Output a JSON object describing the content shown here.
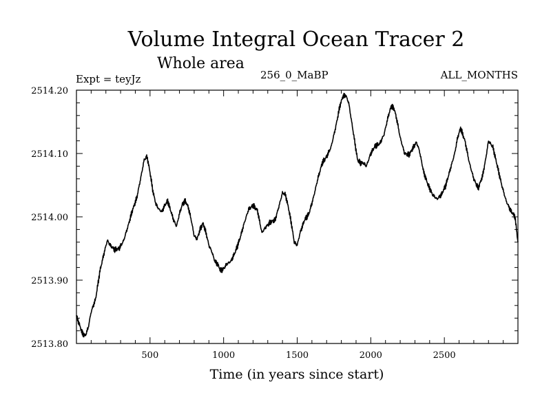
{
  "chart_data": {
    "type": "line",
    "title": "Volume Integral Ocean Tracer 2",
    "subtitle": "Whole area",
    "annotations": {
      "experiment": "Expt = teyJz",
      "period": "256_0_MaBP",
      "months": "ALL_MONTHS"
    },
    "xlabel": "Time (in years since start)",
    "ylabel": "",
    "xlim": [
      0,
      3000
    ],
    "ylim": [
      2513.8,
      2514.2
    ],
    "x_ticks": [
      500,
      1000,
      1500,
      2000,
      2500
    ],
    "x_tick_labels": [
      "500",
      "1000",
      "1500",
      "2000",
      "2500"
    ],
    "y_ticks": [
      2513.8,
      2513.9,
      2514.0,
      2514.1,
      2514.2
    ],
    "y_tick_labels": [
      "2513.80",
      "2513.90",
      "2514.00",
      "2514.10",
      "2514.20"
    ],
    "x_minor_step": 100,
    "y_minor_step": 0.02,
    "grid": false,
    "series": [
      {
        "name": "Volume Integral Ocean Tracer 2",
        "color": "#000000",
        "x": [
          0,
          20,
          40,
          60,
          80,
          100,
          130,
          160,
          190,
          210,
          230,
          260,
          290,
          320,
          350,
          380,
          410,
          440,
          460,
          480,
          500,
          520,
          540,
          560,
          580,
          600,
          620,
          640,
          660,
          680,
          700,
          720,
          740,
          760,
          780,
          800,
          820,
          840,
          860,
          880,
          900,
          920,
          940,
          960,
          980,
          1000,
          1020,
          1050,
          1080,
          1110,
          1140,
          1170,
          1200,
          1230,
          1260,
          1290,
          1320,
          1350,
          1380,
          1400,
          1420,
          1440,
          1460,
          1480,
          1500,
          1520,
          1550,
          1580,
          1610,
          1640,
          1670,
          1700,
          1730,
          1760,
          1790,
          1810,
          1830,
          1850,
          1870,
          1890,
          1910,
          1930,
          1950,
          1970,
          2000,
          2030,
          2060,
          2090,
          2120,
          2140,
          2160,
          2180,
          2200,
          2230,
          2260,
          2290,
          2310,
          2330,
          2360,
          2390,
          2420,
          2450,
          2480,
          2510,
          2540,
          2570,
          2590,
          2610,
          2640,
          2670,
          2700,
          2730,
          2760,
          2780,
          2800,
          2830,
          2860,
          2890,
          2920,
          2950,
          2980,
          3000
        ],
        "y": [
          2513.843,
          2513.83,
          2513.816,
          2513.812,
          2513.825,
          2513.85,
          2513.87,
          2513.915,
          2513.945,
          2513.963,
          2513.955,
          2513.948,
          2513.95,
          2513.962,
          2513.985,
          2514.01,
          2514.03,
          2514.065,
          2514.09,
          2514.095,
          2514.07,
          2514.04,
          2514.02,
          2514.012,
          2514.008,
          2514.018,
          2514.025,
          2514.01,
          2513.995,
          2513.985,
          2514.005,
          2514.02,
          2514.025,
          2514.015,
          2513.995,
          2513.97,
          2513.965,
          2513.98,
          2513.99,
          2513.975,
          2513.955,
          2513.945,
          2513.93,
          2513.925,
          2513.915,
          2513.918,
          2513.925,
          2513.93,
          2513.945,
          2513.965,
          2513.99,
          2514.012,
          2514.018,
          2514.01,
          2513.975,
          2513.985,
          2513.992,
          2513.995,
          2514.02,
          2514.038,
          2514.035,
          2514.015,
          2513.99,
          2513.96,
          2513.955,
          2513.975,
          2513.995,
          2514.005,
          2514.03,
          2514.06,
          2514.085,
          2514.095,
          2514.11,
          2514.14,
          2514.175,
          2514.19,
          2514.192,
          2514.18,
          2514.15,
          2514.12,
          2514.09,
          2514.085,
          2514.085,
          2514.08,
          2514.1,
          2514.112,
          2514.115,
          2514.13,
          2514.16,
          2514.175,
          2514.17,
          2514.15,
          2514.125,
          2514.1,
          2514.098,
          2514.11,
          2514.118,
          2514.105,
          2514.07,
          2514.05,
          2514.035,
          2514.028,
          2514.035,
          2514.05,
          2514.075,
          2514.1,
          2514.125,
          2514.14,
          2514.12,
          2514.085,
          2514.06,
          2514.045,
          2514.065,
          2514.09,
          2514.12,
          2514.11,
          2514.08,
          2514.05,
          2514.025,
          2514.01,
          2514.0,
          2513.96
        ]
      }
    ]
  }
}
